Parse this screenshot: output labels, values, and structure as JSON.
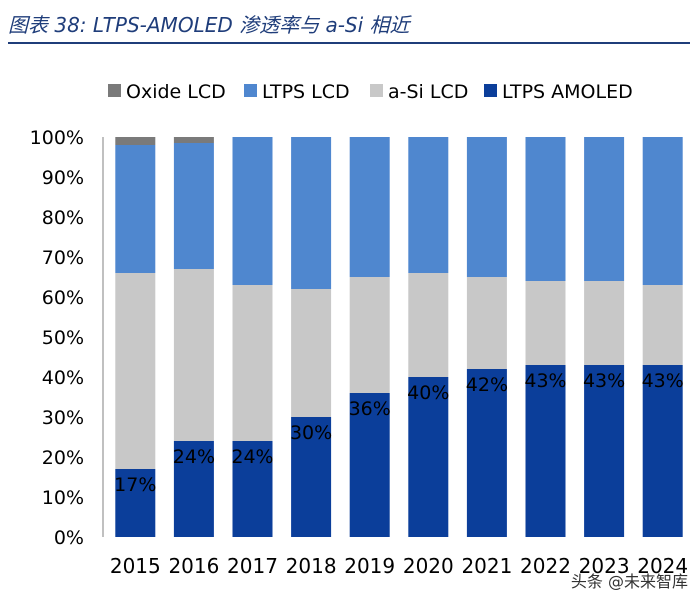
{
  "figure_title": "图表 38:  LTPS-AMOLED 渗透率与 a-Si 相近",
  "watermark": "头条 @未来智库",
  "chart_data": {
    "type": "bar",
    "stacked": true,
    "percent": true,
    "categories": [
      "2015",
      "2016",
      "2017",
      "2018",
      "2019",
      "2020",
      "2021",
      "2022",
      "2023",
      "2024"
    ],
    "ylim": [
      0,
      100
    ],
    "yticks": [
      "0%",
      "10%",
      "20%",
      "30%",
      "40%",
      "50%",
      "60%",
      "70%",
      "80%",
      "90%",
      "100%"
    ],
    "legend_position": "top",
    "legend_order": [
      "Oxide LCD",
      "LTPS LCD",
      "a-Si LCD",
      "LTPS AMOLED"
    ],
    "series": [
      {
        "name": "LTPS AMOLED",
        "color": "#0b3e9a",
        "values": [
          17,
          24,
          24,
          30,
          36,
          40,
          42,
          43,
          43,
          43
        ]
      },
      {
        "name": "a-Si LCD",
        "color": "#c8c8c8",
        "values": [
          49,
          43,
          39,
          32,
          29,
          26,
          23,
          21,
          21,
          20
        ]
      },
      {
        "name": "LTPS LCD",
        "color": "#4f87cf",
        "values": [
          32,
          31.5,
          37,
          38,
          35,
          34,
          35,
          36,
          36,
          37
        ]
      },
      {
        "name": "Oxide LCD",
        "color": "#7a7a7a",
        "values": [
          2,
          1.5,
          0,
          0,
          0,
          0,
          0,
          0,
          0,
          0
        ]
      }
    ],
    "data_labels": [
      "17%",
      "24%",
      "24%",
      "30%",
      "36%",
      "40%",
      "42%",
      "43%",
      "43%",
      "43%"
    ]
  }
}
